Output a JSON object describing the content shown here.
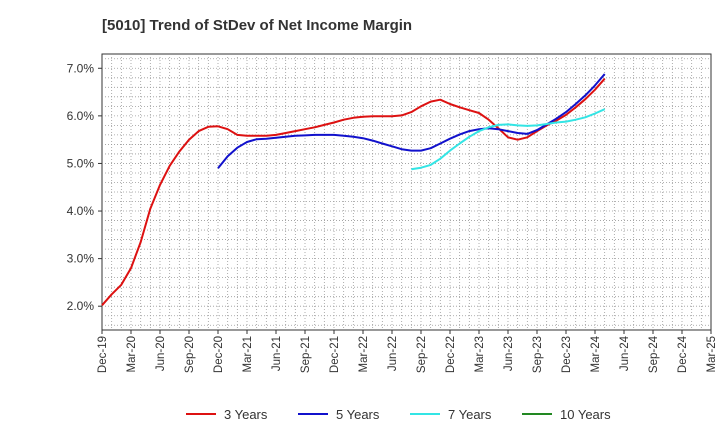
{
  "chart_data": {
    "type": "line",
    "title": "[5010]  Trend of StDev of Net Income Margin",
    "xlabel": "",
    "ylabel": "",
    "ylim": [
      1.5,
      7.3
    ],
    "y_ticks": [
      2.0,
      3.0,
      4.0,
      5.0,
      6.0,
      7.0
    ],
    "y_tick_labels": [
      "2.0%",
      "3.0%",
      "4.0%",
      "5.0%",
      "6.0%",
      "7.0%"
    ],
    "x_tick_labels": [
      "Dec-19",
      "Mar-20",
      "Jun-20",
      "Sep-20",
      "Dec-20",
      "Mar-21",
      "Jun-21",
      "Sep-21",
      "Dec-21",
      "Mar-22",
      "Jun-22",
      "Sep-22",
      "Dec-22",
      "Mar-23",
      "Jun-23",
      "Sep-23",
      "Dec-23",
      "Mar-24",
      "Jun-24",
      "Sep-24",
      "Dec-24",
      "Mar-25"
    ],
    "grid": true,
    "legend_position": "bottom",
    "series": [
      {
        "name": "3 Years",
        "color": "#dd1111",
        "values": [
          [
            0,
            2.02
          ],
          [
            1,
            2.25
          ],
          [
            2,
            2.45
          ],
          [
            3,
            2.8
          ],
          [
            4,
            3.35
          ],
          [
            5,
            4.05
          ],
          [
            6,
            4.55
          ],
          [
            7,
            4.95
          ],
          [
            8,
            5.25
          ],
          [
            9,
            5.5
          ],
          [
            10,
            5.68
          ],
          [
            11,
            5.77
          ],
          [
            12,
            5.78
          ],
          [
            13,
            5.72
          ],
          [
            14,
            5.6
          ],
          [
            15,
            5.58
          ],
          [
            16,
            5.58
          ],
          [
            17,
            5.58
          ],
          [
            18,
            5.6
          ],
          [
            19,
            5.64
          ],
          [
            20,
            5.68
          ],
          [
            21,
            5.72
          ],
          [
            22,
            5.76
          ],
          [
            23,
            5.81
          ],
          [
            24,
            5.86
          ],
          [
            25,
            5.92
          ],
          [
            26,
            5.96
          ],
          [
            27,
            5.98
          ],
          [
            28,
            5.99
          ],
          [
            29,
            5.99
          ],
          [
            30,
            5.99
          ],
          [
            31,
            6.01
          ],
          [
            32,
            6.08
          ],
          [
            33,
            6.2
          ],
          [
            34,
            6.3
          ],
          [
            35,
            6.34
          ],
          [
            36,
            6.25
          ],
          [
            37,
            6.18
          ],
          [
            38,
            6.12
          ],
          [
            39,
            6.06
          ],
          [
            40,
            5.92
          ],
          [
            41,
            5.74
          ],
          [
            42,
            5.55
          ],
          [
            43,
            5.5
          ],
          [
            44,
            5.55
          ],
          [
            45,
            5.68
          ],
          [
            46,
            5.8
          ],
          [
            47,
            5.9
          ],
          [
            48,
            6.02
          ],
          [
            49,
            6.18
          ],
          [
            50,
            6.35
          ],
          [
            51,
            6.55
          ],
          [
            52,
            6.78
          ]
        ]
      },
      {
        "name": "5 Years",
        "color": "#1111cc",
        "values": [
          [
            12,
            4.9
          ],
          [
            13,
            5.15
          ],
          [
            14,
            5.33
          ],
          [
            15,
            5.45
          ],
          [
            16,
            5.51
          ],
          [
            17,
            5.52
          ],
          [
            18,
            5.54
          ],
          [
            19,
            5.56
          ],
          [
            20,
            5.58
          ],
          [
            21,
            5.59
          ],
          [
            22,
            5.6
          ],
          [
            23,
            5.6
          ],
          [
            24,
            5.6
          ],
          [
            25,
            5.58
          ],
          [
            26,
            5.56
          ],
          [
            27,
            5.53
          ],
          [
            28,
            5.48
          ],
          [
            29,
            5.42
          ],
          [
            30,
            5.36
          ],
          [
            31,
            5.3
          ],
          [
            32,
            5.27
          ],
          [
            33,
            5.27
          ],
          [
            34,
            5.32
          ],
          [
            35,
            5.42
          ],
          [
            36,
            5.52
          ],
          [
            37,
            5.61
          ],
          [
            38,
            5.68
          ],
          [
            39,
            5.72
          ],
          [
            40,
            5.74
          ],
          [
            41,
            5.72
          ],
          [
            42,
            5.68
          ],
          [
            43,
            5.64
          ],
          [
            44,
            5.62
          ],
          [
            45,
            5.7
          ],
          [
            46,
            5.82
          ],
          [
            47,
            5.94
          ],
          [
            48,
            6.08
          ],
          [
            49,
            6.25
          ],
          [
            50,
            6.43
          ],
          [
            51,
            6.64
          ],
          [
            52,
            6.88
          ]
        ]
      },
      {
        "name": "7 Years",
        "color": "#33e5e5",
        "values": [
          [
            32,
            4.88
          ],
          [
            33,
            4.91
          ],
          [
            34,
            4.97
          ],
          [
            35,
            5.1
          ],
          [
            36,
            5.27
          ],
          [
            37,
            5.42
          ],
          [
            38,
            5.56
          ],
          [
            39,
            5.68
          ],
          [
            40,
            5.76
          ],
          [
            41,
            5.81
          ],
          [
            42,
            5.82
          ],
          [
            43,
            5.8
          ],
          [
            44,
            5.79
          ],
          [
            45,
            5.8
          ],
          [
            46,
            5.83
          ],
          [
            47,
            5.86
          ],
          [
            48,
            5.88
          ],
          [
            49,
            5.92
          ],
          [
            50,
            5.97
          ],
          [
            51,
            6.05
          ],
          [
            52,
            6.14
          ]
        ]
      },
      {
        "name": "10 Years",
        "color": "#228822",
        "values": []
      }
    ]
  }
}
